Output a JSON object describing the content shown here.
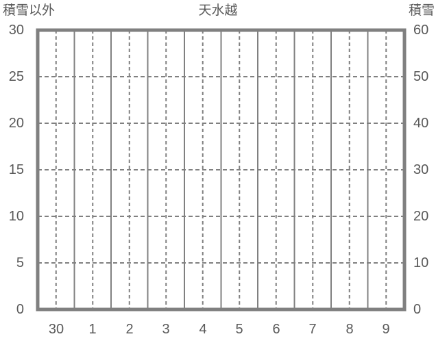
{
  "chart_data": {
    "type": "line",
    "title": "天水越",
    "left_axis": {
      "label": "積雪以外",
      "ticks": [
        0,
        5,
        10,
        15,
        20,
        25,
        30
      ],
      "range": [
        0,
        30
      ]
    },
    "right_axis": {
      "label": "積雪",
      "ticks": [
        0,
        10,
        20,
        30,
        40,
        50,
        60
      ],
      "range": [
        0,
        60
      ]
    },
    "x_axis": {
      "categories": [
        "30",
        "1",
        "2",
        "3",
        "4",
        "5",
        "6",
        "7",
        "8",
        "9"
      ]
    },
    "series": [],
    "grid": {
      "vertical_solid_at_category_boundaries": true,
      "vertical_dashed_at_category_centers": true,
      "horizontal_dashed_at_left_ticks": true
    },
    "legend": false
  },
  "colors": {
    "background": "#ffffff",
    "border": "#808080",
    "grid": "#808080",
    "text": "#595959"
  }
}
